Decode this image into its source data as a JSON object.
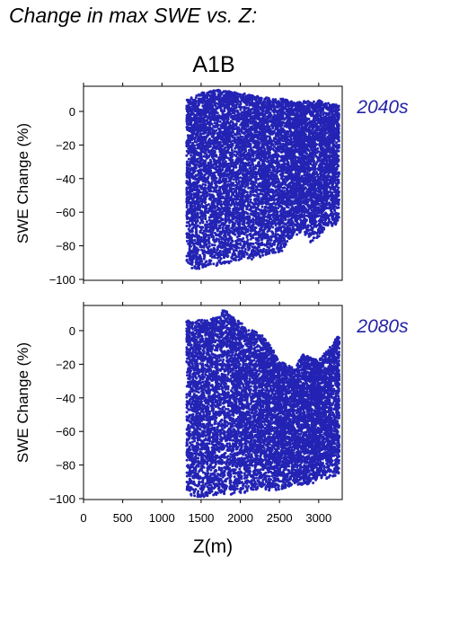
{
  "page_title": "Change in max SWE vs. Z:",
  "chart_data": {
    "type": "scatter",
    "title": "A1B",
    "xlabel": "Z(m)",
    "ylabel": "SWE Change (%)",
    "xlim": [
      0,
      3300
    ],
    "ylim": [
      -100,
      15
    ],
    "xticks": [
      0,
      500,
      1000,
      1500,
      2000,
      2500,
      3000
    ],
    "yticks": [
      -100,
      -80,
      -60,
      -40,
      -20,
      0
    ],
    "point_color": "#2323b4",
    "label_color": "#2323a8",
    "panels": [
      {
        "label": "2040s",
        "x_range": [
          1320,
          3260
        ],
        "columns": [
          {
            "x": 1320,
            "ymin": -90,
            "ymax": 7
          },
          {
            "x": 1400,
            "ymin": -94,
            "ymax": 9
          },
          {
            "x": 1500,
            "ymin": -94,
            "ymax": 11
          },
          {
            "x": 1600,
            "ymin": -92,
            "ymax": 12
          },
          {
            "x": 1700,
            "ymin": -92,
            "ymax": 13
          },
          {
            "x": 1800,
            "ymin": -91,
            "ymax": 12
          },
          {
            "x": 1900,
            "ymin": -90,
            "ymax": 12
          },
          {
            "x": 2000,
            "ymin": -90,
            "ymax": 11
          },
          {
            "x": 2100,
            "ymin": -88,
            "ymax": 10
          },
          {
            "x": 2200,
            "ymin": -88,
            "ymax": 9
          },
          {
            "x": 2300,
            "ymin": -86,
            "ymax": 9
          },
          {
            "x": 2400,
            "ymin": -84,
            "ymax": 8
          },
          {
            "x": 2500,
            "ymin": -86,
            "ymax": 8
          },
          {
            "x": 2600,
            "ymin": -78,
            "ymax": 7
          },
          {
            "x": 2700,
            "ymin": -74,
            "ymax": 5
          },
          {
            "x": 2800,
            "ymin": -72,
            "ymax": 6
          },
          {
            "x": 2900,
            "ymin": -78,
            "ymax": 6
          },
          {
            "x": 3000,
            "ymin": -76,
            "ymax": 7
          },
          {
            "x": 3100,
            "ymin": -70,
            "ymax": 5
          },
          {
            "x": 3200,
            "ymin": -68,
            "ymax": 4
          },
          {
            "x": 3260,
            "ymin": -66,
            "ymax": 4
          }
        ]
      },
      {
        "label": "2080s",
        "x_range": [
          1320,
          3260
        ],
        "columns": [
          {
            "x": 1320,
            "ymin": -97,
            "ymax": 6
          },
          {
            "x": 1400,
            "ymin": -99,
            "ymax": 6
          },
          {
            "x": 1500,
            "ymin": -99,
            "ymax": 7
          },
          {
            "x": 1600,
            "ymin": -99,
            "ymax": 7
          },
          {
            "x": 1700,
            "ymin": -98,
            "ymax": 8
          },
          {
            "x": 1800,
            "ymin": -98,
            "ymax": 13
          },
          {
            "x": 1900,
            "ymin": -98,
            "ymax": 8
          },
          {
            "x": 2000,
            "ymin": -97,
            "ymax": 5
          },
          {
            "x": 2100,
            "ymin": -96,
            "ymax": 1
          },
          {
            "x": 2200,
            "ymin": -96,
            "ymax": 0
          },
          {
            "x": 2300,
            "ymin": -95,
            "ymax": -4
          },
          {
            "x": 2400,
            "ymin": -95,
            "ymax": -10
          },
          {
            "x": 2500,
            "ymin": -95,
            "ymax": -18
          },
          {
            "x": 2600,
            "ymin": -93,
            "ymax": -20
          },
          {
            "x": 2700,
            "ymin": -92,
            "ymax": -22
          },
          {
            "x": 2800,
            "ymin": -92,
            "ymax": -14
          },
          {
            "x": 2900,
            "ymin": -92,
            "ymax": -16
          },
          {
            "x": 3000,
            "ymin": -88,
            "ymax": -18
          },
          {
            "x": 3100,
            "ymin": -88,
            "ymax": -12
          },
          {
            "x": 3200,
            "ymin": -88,
            "ymax": -6
          },
          {
            "x": 3260,
            "ymin": -86,
            "ymax": -2
          }
        ]
      }
    ]
  }
}
